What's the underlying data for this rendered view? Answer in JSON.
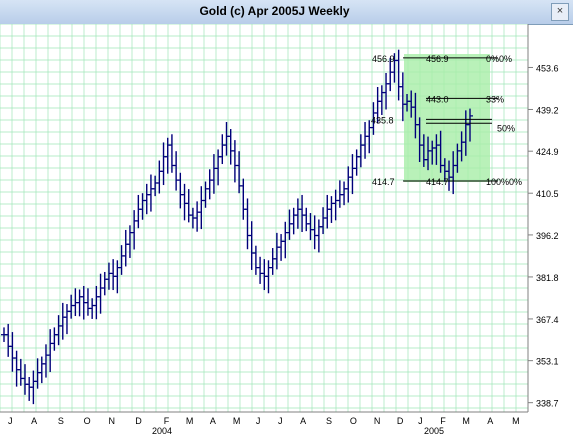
{
  "window": {
    "title": "Gold (c) Apr 2005J Weekly",
    "close_label": "×"
  },
  "chart_data": {
    "type": "ohlc",
    "title": "Gold (c) Apr 2005J Weekly",
    "y_axis_labels": [
      "453.6",
      "439.2",
      "424.9",
      "410.5",
      "396.2",
      "381.8",
      "367.4",
      "353.1",
      "338.7"
    ],
    "y_ticks": [
      453.6,
      439.2,
      424.9,
      410.5,
      396.2,
      381.8,
      367.4,
      353.1,
      338.7
    ],
    "ylim": [
      335.5,
      468.5
    ],
    "x_month_labels": [
      "J",
      "A",
      "S",
      "O",
      "N",
      "D",
      "F",
      "M",
      "A",
      "M",
      "J",
      "J",
      "A",
      "S",
      "O",
      "N",
      "D",
      "J",
      "F",
      "M",
      "A",
      "M"
    ],
    "x_year_labels": [
      "2004",
      "2005"
    ],
    "bar_color": "#00007a",
    "grid_color": "#9fe6b8",
    "fib_zone_color": "#a8eea8",
    "fib_price_labels": [
      "456.9",
      "435.8",
      "414.7"
    ],
    "fib_line_labels": [
      "456.9",
      "443.0",
      "414.7"
    ],
    "fib_pct_labels": [
      "0%0%",
      "33%",
      "50%",
      "100%0%"
    ],
    "weekly_closes": [
      362,
      358,
      354,
      350,
      347,
      345,
      344,
      346,
      349,
      352,
      355,
      359,
      362,
      365,
      368,
      370,
      372,
      373,
      375,
      373,
      371,
      372,
      375,
      378,
      381,
      383,
      382,
      385,
      389,
      393,
      397,
      401,
      405,
      408,
      410,
      412,
      414,
      418,
      423,
      427,
      420,
      415,
      410,
      407,
      403,
      402,
      404,
      408,
      412,
      415,
      419,
      423,
      427,
      430,
      425,
      420,
      413,
      405,
      396,
      390,
      385,
      383,
      382,
      385,
      388,
      392,
      394,
      397,
      400,
      403,
      405,
      403,
      400,
      398,
      396,
      399,
      402,
      405,
      407,
      408,
      410,
      412,
      416,
      419,
      423,
      427,
      430,
      433,
      438,
      442,
      445,
      448,
      452,
      456,
      447,
      441,
      442,
      440,
      434,
      427,
      422,
      425,
      426,
      427,
      420,
      418,
      416,
      420,
      425,
      428,
      434,
      437
    ]
  }
}
